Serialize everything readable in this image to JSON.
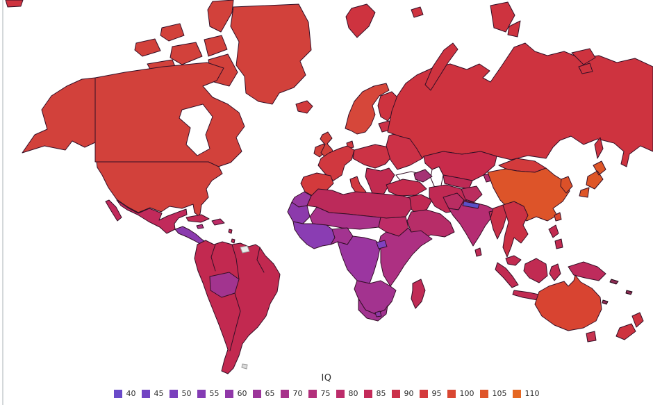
{
  "page": {
    "background": "#ffffff",
    "edge_line_color": "#d4d8da"
  },
  "chart_data": {
    "type": "choropleth",
    "title": "IQ",
    "description": "World map choropleth of average IQ by country, purple (low) to orange (high)",
    "legend": {
      "title": "IQ",
      "position": "bottom-center",
      "breaks": [
        40,
        45,
        50,
        55,
        60,
        65,
        70,
        75,
        80,
        85,
        90,
        95,
        100,
        105,
        110
      ],
      "colors": [
        "#6A4AC9",
        "#7244C3",
        "#7A40BD",
        "#843CB4",
        "#9038A8",
        "#9C359A",
        "#A7328B",
        "#B22F7B",
        "#BC2C6A",
        "#C42A59",
        "#CB3049",
        "#D33A3D",
        "#D94732",
        "#DF552A",
        "#E56722"
      ]
    },
    "map": {
      "outline_color": "#330f26",
      "sea_color": "#FFFFFF",
      "no_data_color": "#ECECEC",
      "regions": {
        "topleft_fragment": {
          "label": "Chukotka fragment",
          "iq": 96,
          "color": "#CE333F"
        },
        "ellesmere": {
          "label": "Ellesmere Island (Canada)",
          "iq": 98,
          "color": "#D2413B"
        },
        "arctic_canada": {
          "label": "Canadian Arctic Archipelago",
          "iq": 98,
          "color": "#D2413B"
        },
        "alaska": {
          "label": "Alaska (United States)",
          "iq": 98,
          "color": "#D2413B"
        },
        "canada": {
          "label": "Canada",
          "iq": 98,
          "color": "#D2413B"
        },
        "greenland": {
          "label": "Greenland",
          "iq": 98,
          "color": "#D2413B"
        },
        "usa": {
          "label": "United States",
          "iq": 98,
          "color": "#D2413B"
        },
        "mexico": {
          "label": "Mexico",
          "iq": 87,
          "color": "#C12A5B"
        },
        "baja": {
          "label": "Baja California (Mexico)",
          "iq": 87,
          "color": "#C12A5B"
        },
        "central_america": {
          "label": "Central America",
          "iq": 61,
          "color": "#8B3BAE"
        },
        "cuba": {
          "label": "Cuba",
          "iq": 85,
          "color": "#C22B55"
        },
        "hispaniola": {
          "label": "Hispaniola",
          "iq": 83,
          "color": "#BE2C66"
        },
        "jamaica": {
          "label": "Jamaica",
          "iq": 80,
          "color": "#B22F7B"
        },
        "antilles": {
          "label": "Lesser Antilles",
          "iq": 85,
          "color": "#C22B55"
        },
        "south_america": {
          "label": "South America (main)",
          "iq": 86,
          "color": "#C22950"
        },
        "bolivia": {
          "label": "Bolivia",
          "iq": 68,
          "color": "#A2348F"
        },
        "french_guiana": {
          "label": "French Guiana",
          "iq": null,
          "color": "#ECECEC"
        },
        "falkland": {
          "label": "Falkland Islands",
          "iq": null,
          "color": "#DCDCDC"
        },
        "iceland": {
          "label": "Iceland",
          "iq": 98,
          "color": "#D23A3C"
        },
        "ireland": {
          "label": "Ireland",
          "iq": 97,
          "color": "#D2413B"
        },
        "uk": {
          "label": "United Kingdom",
          "iq": 99,
          "color": "#D2413B"
        },
        "scandinavia": {
          "label": "Norway / Sweden",
          "iq": 99,
          "color": "#D6473A"
        },
        "finland": {
          "label": "Finland",
          "iq": 97,
          "color": "#CE333F"
        },
        "baltics": {
          "label": "Baltic states",
          "iq": 95,
          "color": "#CC3147"
        },
        "denmark": {
          "label": "Denmark",
          "iq": 98,
          "color": "#D0383F"
        },
        "europe_west": {
          "label": "France / Benelux / Germany",
          "iq": 98,
          "color": "#D0383F"
        },
        "iberia": {
          "label": "Spain / Portugal",
          "iq": 98,
          "color": "#D33A3C"
        },
        "italy": {
          "label": "Italy",
          "iq": 97,
          "color": "#D0383F"
        },
        "central_europe": {
          "label": "Central Europe",
          "iq": 96,
          "color": "#CC3345"
        },
        "balkans": {
          "label": "Balkans / Greece",
          "iq": 89,
          "color": "#C22B50"
        },
        "east_europe": {
          "label": "Ukraine / Belarus / Romania",
          "iq": 95,
          "color": "#CC3147"
        },
        "russia": {
          "label": "Russia",
          "iq": 96,
          "color": "#CE333F"
        },
        "arctic_eurasia": {
          "label": "Eurasian Arctic islands",
          "iq": 96,
          "color": "#CE333F"
        },
        "sakhalin": {
          "label": "Sakhalin",
          "iq": 96,
          "color": "#CE333F"
        },
        "kazakhstan": {
          "label": "Kazakhstan",
          "iq": 92,
          "color": "#C82B4B"
        },
        "central_asia": {
          "label": "Uzbekistan / Turkmenistan",
          "iq": 87,
          "color": "#BE2A55"
        },
        "kyrgyz_tajik": {
          "label": "Kyrgyzstan / Tajikistan",
          "iq": 80,
          "color": "#B02F6E"
        },
        "caucasus": {
          "label": "Caucasus",
          "iq": 74,
          "color": "#A53374"
        },
        "turkey": {
          "label": "Turkey",
          "iq": 90,
          "color": "#C62B4E"
        },
        "levant_iraq": {
          "label": "Syria / Iraq / Levant",
          "iq": 86,
          "color": "#C02953"
        },
        "saudi": {
          "label": "Arabian Peninsula",
          "iq": 80,
          "color": "#B72D68"
        },
        "iran": {
          "label": "Iran",
          "iq": 86,
          "color": "#C02953"
        },
        "afghanistan": {
          "label": "Afghanistan",
          "iq": 84,
          "color": "#BB2D5E"
        },
        "pakistan": {
          "label": "Pakistan",
          "iq": 82,
          "color": "#B92D62"
        },
        "india": {
          "label": "India",
          "iq": 78,
          "color": "#B52D72"
        },
        "nepal": {
          "label": "Nepal",
          "iq": 43,
          "color": "#5B50C7"
        },
        "bangladesh": {
          "label": "Bangladesh",
          "iq": 86,
          "color": "#C23052"
        },
        "sri_lanka": {
          "label": "Sri Lanka",
          "iq": 85,
          "color": "#C02B55"
        },
        "china": {
          "label": "China",
          "iq": 105,
          "color": "#DD5429"
        },
        "mongolia": {
          "label": "Mongolia",
          "iq": 98,
          "color": "#D23A3C"
        },
        "korea": {
          "label": "Korea",
          "iq": 104,
          "color": "#DC5129"
        },
        "japan": {
          "label": "Japan",
          "iq": 105,
          "color": "#DE5628"
        },
        "taiwan": {
          "label": "Taiwan",
          "iq": 102,
          "color": "#DA4A32"
        },
        "myanmar": {
          "label": "Myanmar",
          "iq": 91,
          "color": "#C93048"
        },
        "indochina": {
          "label": "Thailand / Laos / Vietnam / Cambodia",
          "iq": 92,
          "color": "#CB3144"
        },
        "malaysia": {
          "label": "Malaysia",
          "iq": 89,
          "color": "#C22B50"
        },
        "indonesia": {
          "label": "Indonesia",
          "iq": 87,
          "color": "#C12B52"
        },
        "philippines": {
          "label": "Philippines",
          "iq": 86,
          "color": "#C22B50"
        },
        "new_guinea": {
          "label": "New Guinea",
          "iq": 83,
          "color": "#BE2B5C"
        },
        "australia": {
          "label": "Australia",
          "iq": 99,
          "color": "#D84431"
        },
        "tasmania": {
          "label": "Tasmania",
          "iq": 95,
          "color": "#C73350"
        },
        "new_zealand": {
          "label": "New Zealand",
          "iq": 97,
          "color": "#CE333F"
        },
        "pacific_islands": {
          "label": "Pacific islands",
          "iq": 85,
          "color": "#8B2B52"
        },
        "morocco": {
          "label": "Morocco",
          "iq": 67,
          "color": "#9839A0"
        },
        "algeria_libya_egypt": {
          "label": "Algeria / Libya / Egypt",
          "iq": 83,
          "color": "#BC2A5A"
        },
        "mauritania": {
          "label": "Mauritania / W. Sahara",
          "iq": 62,
          "color": "#8C3AAC"
        },
        "sahel": {
          "label": "Mali / Niger / Chad",
          "iq": 70,
          "color": "#A93289"
        },
        "sudan": {
          "label": "Sudan",
          "iq": 82,
          "color": "#BE2C66"
        },
        "west_africa": {
          "label": "West Africa coast",
          "iq": 60,
          "color": "#8A3DB3"
        },
        "nigeria": {
          "label": "Nigeria",
          "iq": 68,
          "color": "#A33390"
        },
        "central_africa": {
          "label": "Central Africa / DR Congo",
          "iq": 64,
          "color": "#9B36A0"
        },
        "uganda": {
          "label": "Uganda / South Sudan",
          "iq": 56,
          "color": "#7F41BF"
        },
        "east_africa": {
          "label": "Ethiopia / Horn / East Africa",
          "iq": 72,
          "color": "#AD3082"
        },
        "southern_africa": {
          "label": "Angola / Zambia / Mozambique",
          "iq": 69,
          "color": "#A3338F"
        },
        "south_africa": {
          "label": "South Africa",
          "iq": 68,
          "color": "#A23390"
        },
        "lesotho": {
          "label": "Lesotho",
          "iq": 65,
          "color": "#8F3AA8"
        },
        "madagascar": {
          "label": "Madagascar",
          "iq": 84,
          "color": "#C02B55"
        }
      }
    }
  }
}
